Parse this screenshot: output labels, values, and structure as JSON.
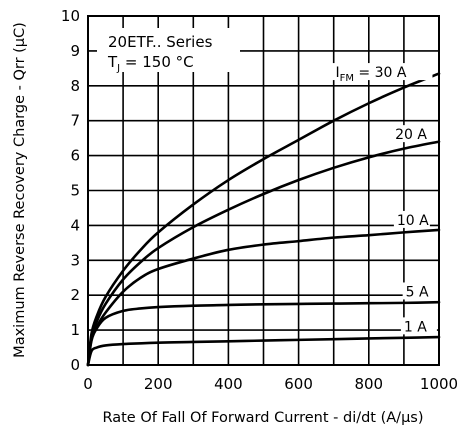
{
  "chart_data": {
    "type": "line",
    "xlabel": "Rate Of Fall Of Forward Current - di/dt (A/µs)",
    "ylabel": "Maximum Reverse Recovery Charge - Qrr (µC)",
    "xlim": [
      0,
      1000
    ],
    "ylim": [
      0,
      10
    ],
    "grid": true,
    "x_ticks": [
      "0",
      "200",
      "400",
      "600",
      "800",
      "1000"
    ],
    "y_ticks": [
      "0",
      "1",
      "2",
      "3",
      "4",
      "5",
      "6",
      "7",
      "8",
      "9",
      "10"
    ],
    "annotation": {
      "line1": "20ETF.. Series",
      "line2_prefix": "T",
      "line2_sub": "J",
      "line2_suffix": " = 150 °C"
    },
    "series": [
      {
        "name": "I FM = 30 A",
        "label_parts": {
          "prefix": "I",
          "sub": "FM",
          "suffix": " = 30 A"
        },
        "points": [
          [
            0,
            0
          ],
          [
            10,
            0.9
          ],
          [
            25,
            1.4
          ],
          [
            50,
            1.95
          ],
          [
            100,
            2.7
          ],
          [
            150,
            3.3
          ],
          [
            200,
            3.8
          ],
          [
            300,
            4.6
          ],
          [
            400,
            5.3
          ],
          [
            500,
            5.9
          ],
          [
            600,
            6.45
          ],
          [
            700,
            7.0
          ],
          [
            800,
            7.5
          ],
          [
            900,
            7.95
          ],
          [
            1000,
            8.35
          ]
        ]
      },
      {
        "name": "20 A",
        "label_parts": {
          "prefix": "20 A",
          "sub": "",
          "suffix": ""
        },
        "points": [
          [
            0,
            0
          ],
          [
            10,
            0.8
          ],
          [
            25,
            1.25
          ],
          [
            50,
            1.75
          ],
          [
            100,
            2.45
          ],
          [
            150,
            2.95
          ],
          [
            200,
            3.35
          ],
          [
            300,
            3.95
          ],
          [
            400,
            4.45
          ],
          [
            500,
            4.9
          ],
          [
            600,
            5.3
          ],
          [
            700,
            5.65
          ],
          [
            800,
            5.95
          ],
          [
            900,
            6.2
          ],
          [
            1000,
            6.4
          ]
        ]
      },
      {
        "name": "10 A",
        "label_parts": {
          "prefix": "10 A",
          "sub": "",
          "suffix": ""
        },
        "points": [
          [
            0,
            0
          ],
          [
            10,
            0.75
          ],
          [
            25,
            1.1
          ],
          [
            50,
            1.5
          ],
          [
            100,
            2.1
          ],
          [
            150,
            2.5
          ],
          [
            200,
            2.75
          ],
          [
            300,
            3.05
          ],
          [
            400,
            3.3
          ],
          [
            500,
            3.45
          ],
          [
            600,
            3.55
          ],
          [
            700,
            3.65
          ],
          [
            800,
            3.72
          ],
          [
            900,
            3.8
          ],
          [
            1000,
            3.87
          ]
        ]
      },
      {
        "name": "5 A",
        "label_parts": {
          "prefix": "5 A",
          "sub": "",
          "suffix": ""
        },
        "points": [
          [
            0,
            0
          ],
          [
            10,
            0.7
          ],
          [
            25,
            1.05
          ],
          [
            50,
            1.35
          ],
          [
            100,
            1.55
          ],
          [
            150,
            1.62
          ],
          [
            200,
            1.66
          ],
          [
            300,
            1.7
          ],
          [
            400,
            1.72
          ],
          [
            500,
            1.74
          ],
          [
            600,
            1.75
          ],
          [
            700,
            1.76
          ],
          [
            800,
            1.77
          ],
          [
            900,
            1.78
          ],
          [
            1000,
            1.8
          ]
        ]
      },
      {
        "name": "1 A",
        "label_parts": {
          "prefix": "1 A",
          "sub": "",
          "suffix": ""
        },
        "points": [
          [
            0,
            0
          ],
          [
            10,
            0.4
          ],
          [
            25,
            0.5
          ],
          [
            50,
            0.56
          ],
          [
            100,
            0.6
          ],
          [
            200,
            0.64
          ],
          [
            300,
            0.66
          ],
          [
            400,
            0.68
          ],
          [
            500,
            0.7
          ],
          [
            600,
            0.72
          ],
          [
            700,
            0.74
          ],
          [
            800,
            0.76
          ],
          [
            900,
            0.78
          ],
          [
            1000,
            0.8
          ]
        ]
      }
    ]
  }
}
